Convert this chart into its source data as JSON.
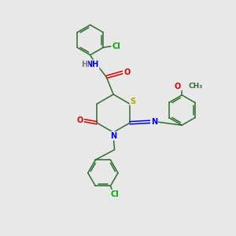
{
  "background_color": "#e8e8e8",
  "fig_size": [
    3.0,
    3.0
  ],
  "dpi": 100,
  "bond_color": "#2d6e2d",
  "N_color": "#0000ff",
  "O_color": "#dd0000",
  "S_color": "#aaaa00",
  "Cl_color": "#00aa00",
  "font_size": 7.0,
  "lw": 1.1,
  "r_ring": 0.65,
  "xlim": [
    0,
    10
  ],
  "ylim": [
    0,
    10
  ]
}
